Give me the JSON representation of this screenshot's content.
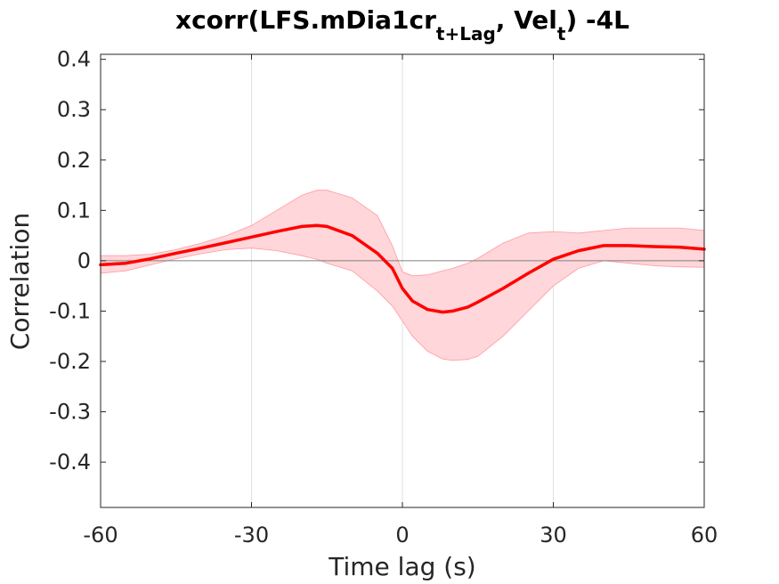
{
  "chart_data": {
    "type": "line",
    "title": {
      "main": "xcorr(LFS.mDia1cr",
      "sub1": "t+Lag",
      "mid": ", Vel",
      "sub2": "t",
      "tail": ") -4L"
    },
    "xlabel": "Time lag (s)",
    "ylabel": "Correlation",
    "xlim": [
      -60,
      60
    ],
    "ylim": [
      -0.49,
      0.41
    ],
    "xticks": [
      -60,
      -30,
      0,
      30,
      60
    ],
    "xtick_labels": [
      "-60",
      "-30",
      "0",
      "30",
      "60"
    ],
    "yticks": [
      0.4,
      0.3,
      0.2,
      0.1,
      0,
      -0.1,
      -0.2,
      -0.3,
      -0.4
    ],
    "ytick_labels": [
      "0.4",
      "0.3",
      "0.2",
      "0.1",
      "0",
      "-0.1",
      "-0.2",
      "-0.3",
      "-0.4"
    ],
    "xgrid": [
      -30,
      0,
      30
    ],
    "zero_line": true,
    "colors": {
      "mean": "#ff0000",
      "band": "#ffd6d9",
      "band_edge": "#ff9aa2",
      "grid": "#e0e0e0",
      "zero": "#7f7f7f"
    },
    "x": [
      -60,
      -55,
      -50,
      -45,
      -40,
      -35,
      -30,
      -25,
      -20,
      -17,
      -15,
      -10,
      -5,
      -2,
      0,
      2,
      5,
      8,
      10,
      13,
      15,
      20,
      25,
      30,
      35,
      40,
      45,
      50,
      55,
      60
    ],
    "series": [
      {
        "values": [
          -0.008,
          -0.005,
          0.004,
          0.015,
          0.025,
          0.036,
          0.047,
          0.058,
          0.068,
          0.07,
          0.068,
          0.05,
          0.015,
          -0.015,
          -0.055,
          -0.08,
          -0.097,
          -0.102,
          -0.1,
          -0.092,
          -0.082,
          -0.055,
          -0.025,
          0.003,
          0.02,
          0.03,
          0.03,
          0.028,
          0.027,
          0.023
        ]
      }
    ],
    "band": {
      "upper": [
        0.01,
        0.01,
        0.013,
        0.022,
        0.035,
        0.05,
        0.07,
        0.1,
        0.13,
        0.14,
        0.14,
        0.125,
        0.09,
        0.03,
        -0.022,
        -0.03,
        -0.028,
        -0.02,
        -0.015,
        -0.005,
        0.005,
        0.035,
        0.055,
        0.058,
        0.055,
        0.06,
        0.065,
        0.065,
        0.065,
        0.06
      ],
      "lower": [
        -0.025,
        -0.02,
        -0.008,
        0.004,
        0.014,
        0.022,
        0.025,
        0.02,
        0.01,
        0.003,
        -0.005,
        -0.02,
        -0.06,
        -0.09,
        -0.12,
        -0.15,
        -0.18,
        -0.195,
        -0.198,
        -0.196,
        -0.19,
        -0.15,
        -0.1,
        -0.05,
        -0.015,
        0.0,
        -0.005,
        -0.01,
        -0.012,
        -0.013
      ]
    }
  }
}
